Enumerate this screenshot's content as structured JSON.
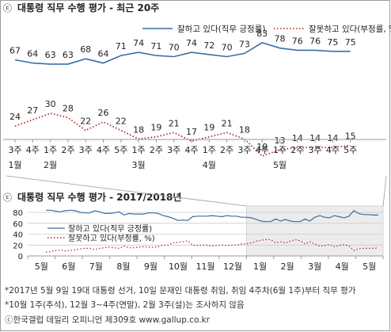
{
  "chart_data": [
    {
      "type": "line",
      "title": "대통령 직무 수행 평가 - 최근 20주",
      "title_symbol": "ⓒ",
      "legend_position": "top",
      "x": [
        "3주",
        "4주",
        "1주",
        "2주",
        "3주",
        "4주",
        "5주",
        "1주",
        "2주",
        "3주",
        "4주",
        "1주",
        "2주",
        "3주",
        "4주",
        "1주",
        "2주",
        "3주",
        "4주",
        "5주"
      ],
      "month_labels": [
        {
          "index": 0,
          "label": "1월"
        },
        {
          "index": 2,
          "label": "2월"
        },
        {
          "index": 7,
          "label": "3월"
        },
        {
          "index": 11,
          "label": "4월"
        },
        {
          "index": 15,
          "label": "5월"
        }
      ],
      "series": [
        {
          "name": "잘하고 있다(직무 긍정률)",
          "color": "#3a6ea5",
          "style": "solid",
          "values": [
            67,
            64,
            63,
            63,
            68,
            64,
            71,
            74,
            71,
            70,
            74,
            72,
            70,
            73,
            83,
            78,
            76,
            76,
            75,
            75
          ]
        },
        {
          "name": "잘못하고 있다(부정률, %)",
          "color": "#b22222",
          "style": "dotted",
          "values": [
            24,
            27,
            30,
            28,
            22,
            26,
            22,
            18,
            19,
            21,
            17,
            19,
            21,
            18,
            10,
            13,
            14,
            14,
            14,
            15
          ]
        }
      ]
    },
    {
      "type": "line",
      "title": "대통령 직무 수행 평가 - 2017/2018년",
      "title_symbol": "ⓒ",
      "legend_position": "top-left",
      "ylim": [
        0,
        80
      ],
      "yticks": [
        0,
        20,
        40,
        60,
        80
      ],
      "months": [
        "5월",
        "6월",
        "7월",
        "8월",
        "9월",
        "10월",
        "11월",
        "12월",
        "1월",
        "2월",
        "3월",
        "4월",
        "5월"
      ],
      "highlight_months": [
        "1월",
        "2월",
        "3월",
        "4월",
        "5월"
      ],
      "series": [
        {
          "name": "잘하고 있다(직무 긍정률)",
          "color": "#3a6ea5",
          "style": "solid",
          "values": [
            84,
            84,
            82,
            81,
            83,
            84,
            83,
            80,
            79,
            79,
            83,
            81,
            78,
            78,
            79,
            81,
            75,
            78,
            77,
            77,
            77,
            79,
            79,
            78,
            74,
            72,
            69,
            65,
            66,
            65,
            72,
            73,
            73,
            73,
            74,
            73,
            72,
            74,
            73,
            73,
            71,
            71,
            70,
            67,
            64,
            63,
            63,
            68,
            64,
            67,
            64,
            63,
            63,
            68,
            64,
            71,
            74,
            71,
            70,
            74,
            72,
            70,
            73,
            83,
            78,
            76,
            76,
            75,
            75
          ]
        },
        {
          "name": "잘못하고 있다(부정률, %)",
          "color": "#b22222",
          "style": "dotted",
          "values": [
            7,
            8,
            10,
            11,
            9,
            10,
            11,
            13,
            14,
            14,
            12,
            14,
            15,
            16,
            15,
            14,
            18,
            15,
            15,
            16,
            17,
            16,
            16,
            17,
            20,
            20,
            24,
            25,
            26,
            28,
            20,
            19,
            20,
            20,
            18,
            19,
            20,
            19,
            20,
            20,
            22,
            22,
            24,
            27,
            29,
            30,
            30,
            24,
            26,
            24,
            27,
            30,
            28,
            22,
            26,
            22,
            18,
            19,
            21,
            17,
            19,
            21,
            18,
            10,
            13,
            14,
            14,
            14,
            15
          ]
        }
      ]
    }
  ],
  "footnotes": [
    "*2017년 5월 9일 19대 대통령 선거, 10일 문재인 대통령 취임, 취임 4주차(6월 1주)부터 직무 평가",
    "*10월 1주(추석), 12월 3~4주(연말), 2월 3주(설)는 조사하지 않음",
    "ⓒ한국갤럽 데일리 오피니언 제309호 www.gallup.co.kr"
  ]
}
